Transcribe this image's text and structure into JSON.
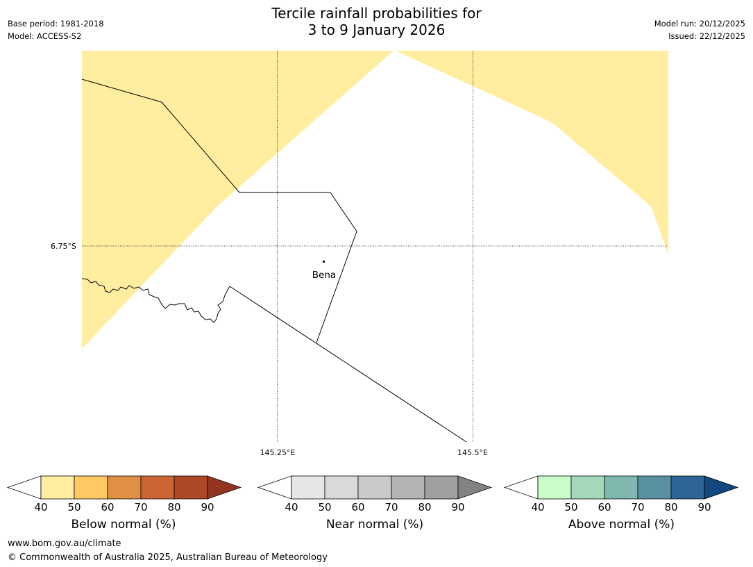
{
  "title_line1": "Tercile rainfall probabilities for",
  "title_line2": "3 to 9 January 2026",
  "base_period": "Base period: 1981-2018",
  "model": "Model: ACCESS-S2",
  "model_run": "Model run: 20/12/2025",
  "issued": "Issued: 22/12/2025",
  "map": {
    "lat_label": "6.75°S",
    "lon_labels": [
      "145.25°E",
      "145.5°E"
    ],
    "place_label": "Bena",
    "shading_category": "below normal 40-50%",
    "shading_color": "#ffeda0"
  },
  "colorbars": [
    {
      "label": "Below normal (%)",
      "ticks": [
        "40",
        "50",
        "60",
        "70",
        "80",
        "90"
      ],
      "colors": [
        "#ffeda0",
        "#fec965",
        "#e08f44",
        "#cc6534",
        "#ae4927",
        "#923521"
      ]
    },
    {
      "label": "Near normal (%)",
      "ticks": [
        "40",
        "50",
        "60",
        "70",
        "80",
        "90"
      ],
      "colors": [
        "#e6e6e6",
        "#d9d9d9",
        "#cacaca",
        "#b4b4b4",
        "#a0a0a0",
        "#828282"
      ]
    },
    {
      "label": "Above normal (%)",
      "ticks": [
        "40",
        "50",
        "60",
        "70",
        "80",
        "90"
      ],
      "colors": [
        "#c9fcc9",
        "#a3d9ba",
        "#7fb6ae",
        "#5a91a1",
        "#2d6696",
        "#13477f"
      ]
    }
  ],
  "footer_url": "www.bom.gov.au/climate",
  "footer_copyright": "© Commonwealth of Australia 2025, Australian Bureau of Meteorology"
}
